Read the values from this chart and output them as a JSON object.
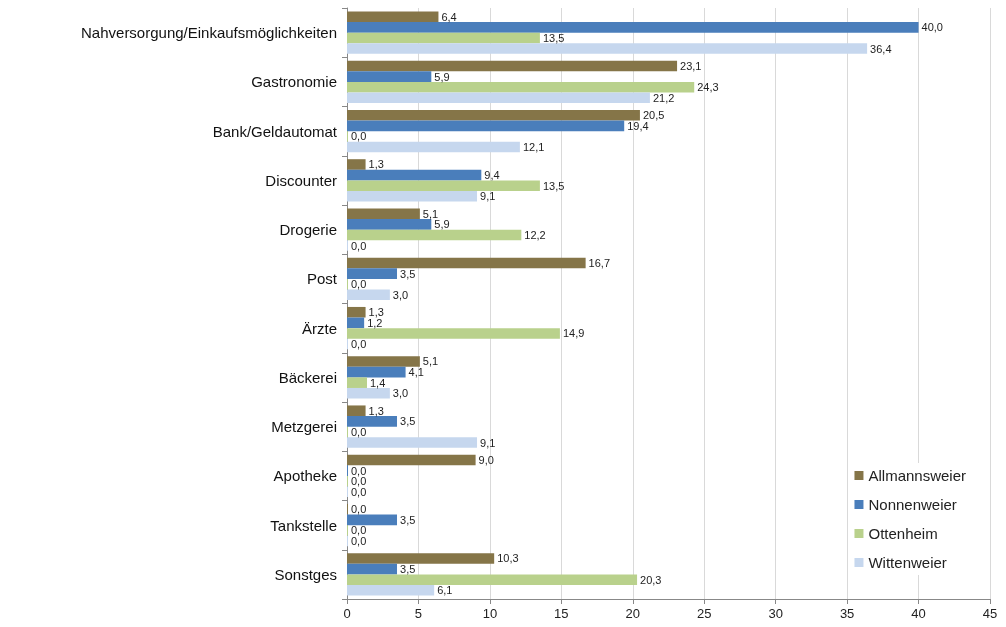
{
  "chart_data": {
    "type": "bar",
    "orientation": "horizontal",
    "categories": [
      "Nahversorgung/Einkaufsmöglichkeiten",
      "Gastronomie",
      "Bank/Geldautomat",
      "Discounter",
      "Drogerie",
      "Post",
      "Ärzte",
      "Bäckerei",
      "Metzgerei",
      "Apotheke",
      "Tankstelle",
      "Sonstges"
    ],
    "series": [
      {
        "name": "Allmannsweier",
        "color": "#857548",
        "values": [
          6.4,
          23.1,
          20.5,
          1.3,
          5.1,
          16.7,
          1.3,
          5.1,
          1.3,
          9.0,
          0.0,
          10.3
        ],
        "value_labels": [
          "6,4",
          "23,1",
          "20,5",
          "1,3",
          "5,1",
          "16,7",
          "1,3",
          "5,1",
          "1,3",
          "9,0",
          "0,0",
          "10,3"
        ]
      },
      {
        "name": "Nonnenweier",
        "color": "#4a7ebb",
        "values": [
          40.0,
          5.9,
          19.4,
          9.4,
          5.9,
          3.5,
          1.2,
          4.1,
          3.5,
          0.0,
          3.5,
          3.5
        ],
        "value_labels": [
          "40,0",
          "5,9",
          "19,4",
          "9,4",
          "5,9",
          "3,5",
          "1,2",
          "4,1",
          "3,5",
          "0,0",
          "3,5",
          "3,5"
        ]
      },
      {
        "name": "Ottenheim",
        "color": "#b9d18c",
        "values": [
          13.5,
          24.3,
          0.0,
          13.5,
          12.2,
          0.0,
          14.9,
          1.4,
          0.0,
          0.0,
          0.0,
          20.3
        ],
        "value_labels": [
          "13,5",
          "24,3",
          "0,0",
          "13,5",
          "12,2",
          "0,0",
          "14,9",
          "1,4",
          "0,0",
          "0,0",
          "0,0",
          "20,3"
        ]
      },
      {
        "name": "Wittenweier",
        "color": "#c6d7ee",
        "values": [
          36.4,
          21.2,
          12.1,
          9.1,
          0.0,
          3.0,
          0.0,
          3.0,
          9.1,
          0.0,
          0.0,
          6.1
        ],
        "value_labels": [
          "36,4",
          "21,2",
          "12,1",
          "9,1",
          "0,0",
          "3,0",
          "0,0",
          "3,0",
          "9,1",
          "0,0",
          "0,0",
          "6,1"
        ]
      }
    ],
    "xlim": [
      0,
      45
    ],
    "xticks": [
      0,
      5,
      10,
      15,
      20,
      25,
      30,
      35,
      40,
      45
    ],
    "grid": "x",
    "legend": "bottom right"
  }
}
